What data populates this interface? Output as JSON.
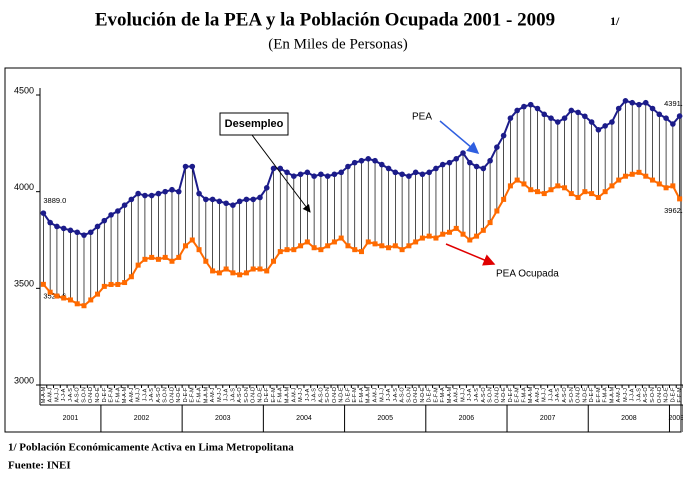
{
  "chart_data": {
    "type": "line",
    "title": "Evolución de la PEA y la Población Ocupada 2001 - 2009",
    "title_note": "1/",
    "subtitle": "(En Miles de Personas)",
    "category_groups": [
      {
        "label": "2001",
        "categories": [
          "M-A-M",
          "A-M-J",
          "M-J-J",
          "J-J-A",
          "J-A-S",
          "A-S-O",
          "S-O-N",
          "O-N-D",
          "N-D-E"
        ]
      },
      {
        "label": "2002",
        "categories": [
          "D-E-F",
          "E-F-M",
          "F-M-A",
          "M-A-M",
          "A-M-J",
          "M-J-J",
          "J-J-A",
          "J-A-S",
          "A-S-O",
          "S-O-N",
          "O-N-D",
          "N-D-E"
        ]
      },
      {
        "label": "2003",
        "categories": [
          "D-E-F",
          "E-F-M",
          "F-M-A",
          "M-A-M",
          "A-M-J",
          "M-J-J",
          "J-J-A",
          "J-A-S",
          "A-S-O",
          "S-O-N",
          "O-N-D",
          "N-D-E"
        ]
      },
      {
        "label": "2004",
        "categories": [
          "D-E-F",
          "E-F-M",
          "F-M-A",
          "M-A-M",
          "A-M-J",
          "M-J-J",
          "J-J-A",
          "J-A-S",
          "A-S-O",
          "S-O-N",
          "O-N-D",
          "N-D-E"
        ]
      },
      {
        "label": "2005",
        "categories": [
          "D-E-F",
          "E-F-M",
          "F-M-A",
          "M-A-M",
          "A-M-J",
          "M-J-J",
          "J-J-A",
          "J-A-S",
          "A-S-O",
          "S-O-N",
          "O-N-D",
          "N-D-E"
        ]
      },
      {
        "label": "2006",
        "categories": [
          "D-E-F",
          "E-F-M",
          "F-M-A",
          "M-A-M",
          "A-M-J",
          "M-J-J",
          "J-J-A",
          "J-A-S",
          "A-S-O",
          "S-O-N",
          "O-N-D",
          "N-D-E"
        ]
      },
      {
        "label": "2007",
        "categories": [
          "D-E-F",
          "E-F-M",
          "F-M-A",
          "M-A-M",
          "A-M-J",
          "M-J-J",
          "J-J-A",
          "J-A-S",
          "A-S-O",
          "S-O-N",
          "O-N-D",
          "N-D-E"
        ]
      },
      {
        "label": "2008",
        "categories": [
          "D-E-F",
          "E-F-M",
          "F-M-A",
          "M-A-M",
          "A-M-J",
          "M-J-J",
          "J-J-A",
          "J-A-S",
          "A-S-O",
          "S-O-N",
          "O-N-D",
          "N-D-E"
        ]
      },
      {
        "label": "2009",
        "categories": [
          "D-E-F",
          "E-F-M"
        ]
      }
    ],
    "series": [
      {
        "name": "PEA",
        "color": "#1c1c8a",
        "marker": "circle",
        "values": [
          3889,
          3840,
          3820,
          3810,
          3800,
          3790,
          3775,
          3790,
          3820,
          3850,
          3880,
          3900,
          3930,
          3960,
          3990,
          3980,
          3980,
          3990,
          4000,
          4010,
          4000,
          4130,
          4130,
          3990,
          3960,
          3960,
          3950,
          3940,
          3930,
          3950,
          3960,
          3960,
          3970,
          4020,
          4120,
          4120,
          4100,
          4080,
          4090,
          4100,
          4080,
          4090,
          4080,
          4090,
          4100,
          4130,
          4150,
          4160,
          4170,
          4160,
          4140,
          4120,
          4100,
          4090,
          4080,
          4100,
          4090,
          4100,
          4120,
          4140,
          4150,
          4170,
          4200,
          4150,
          4130,
          4120,
          4160,
          4230,
          4290,
          4380,
          4420,
          4440,
          4450,
          4430,
          4400,
          4380,
          4360,
          4380,
          4420,
          4410,
          4390,
          4360,
          4320,
          4340,
          4360,
          4430,
          4470,
          4460,
          4450,
          4460,
          4430,
          4400,
          4380,
          4350,
          4391
        ],
        "value_labels": [
          "3889.0",
          null,
          null,
          null,
          null,
          null,
          null,
          null,
          null,
          null,
          null,
          null,
          null,
          null,
          null,
          null,
          null,
          null,
          null,
          null,
          null,
          null,
          null,
          null,
          null,
          null,
          null,
          null,
          null,
          null,
          null,
          null,
          null,
          null,
          null,
          null,
          null,
          null,
          null,
          null,
          null,
          null,
          null,
          null,
          null,
          null,
          null,
          null,
          null,
          null,
          null,
          null,
          null,
          null,
          null,
          null,
          null,
          null,
          null,
          null,
          null,
          null,
          null,
          null,
          null,
          null,
          null,
          null,
          null,
          null,
          null,
          null,
          null,
          null,
          null,
          null,
          null,
          null,
          null,
          null,
          null,
          null,
          null,
          null,
          null,
          null,
          null,
          null,
          null,
          null,
          null,
          null,
          null,
          null,
          "4391.0"
        ]
      },
      {
        "name": "PEA Ocupada",
        "color": "#ff6a00",
        "marker": "square",
        "values": [
          3520.6,
          3480,
          3460,
          3450,
          3440,
          3420,
          3410,
          3440,
          3470,
          3510,
          3520,
          3520,
          3530,
          3560,
          3620,
          3650,
          3660,
          3650,
          3660,
          3640,
          3660,
          3720,
          3750,
          3700,
          3640,
          3590,
          3580,
          3600,
          3580,
          3570,
          3580,
          3600,
          3600,
          3590,
          3640,
          3690,
          3700,
          3700,
          3720,
          3740,
          3710,
          3700,
          3720,
          3740,
          3760,
          3720,
          3700,
          3690,
          3740,
          3730,
          3720,
          3710,
          3720,
          3700,
          3720,
          3740,
          3760,
          3770,
          3760,
          3780,
          3790,
          3810,
          3780,
          3750,
          3770,
          3800,
          3840,
          3900,
          3960,
          4030,
          4060,
          4040,
          4010,
          4000,
          3990,
          4010,
          4030,
          4020,
          3990,
          3970,
          4000,
          3990,
          3970,
          4000,
          4030,
          4060,
          4080,
          4090,
          4100,
          4080,
          4060,
          4040,
          4020,
          4030,
          3962.7
        ],
        "value_labels": [
          "3520.6",
          null,
          null,
          null,
          null,
          null,
          null,
          null,
          null,
          null,
          null,
          null,
          null,
          null,
          null,
          null,
          null,
          null,
          null,
          null,
          null,
          null,
          null,
          null,
          null,
          null,
          null,
          null,
          null,
          null,
          null,
          null,
          null,
          null,
          null,
          null,
          null,
          null,
          null,
          null,
          null,
          null,
          null,
          null,
          null,
          null,
          null,
          null,
          null,
          null,
          null,
          null,
          null,
          null,
          null,
          null,
          null,
          null,
          null,
          null,
          null,
          null,
          null,
          null,
          null,
          null,
          null,
          null,
          null,
          null,
          null,
          null,
          null,
          null,
          null,
          null,
          null,
          null,
          null,
          null,
          null,
          null,
          null,
          null,
          null,
          null,
          null,
          null,
          null,
          null,
          null,
          null,
          null,
          null,
          "3962.7"
        ]
      }
    ],
    "annotations": [
      "Desempleo"
    ],
    "ylim": [
      3000,
      4500
    ],
    "yticks": [
      3000,
      3500,
      4000,
      4500
    ],
    "notes": [
      "1/ Población Económicamente Activa en Lima Metropolitana",
      "Fuente: INEI"
    ]
  }
}
